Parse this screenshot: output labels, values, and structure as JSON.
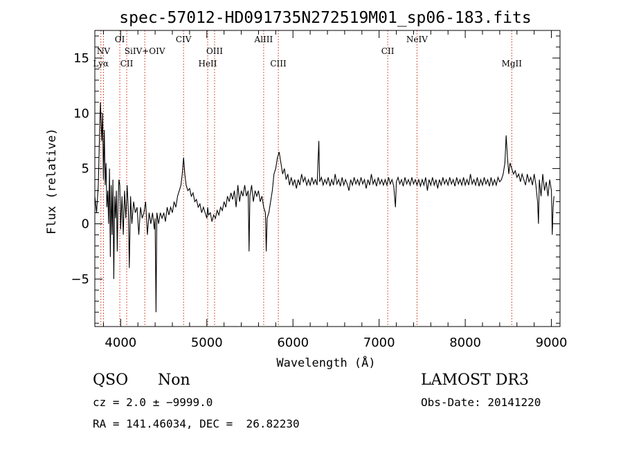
{
  "chart_data": {
    "type": "line",
    "title": "spec-57012-HD091735N272519M01_sp06-183.fits",
    "xlabel": "Wavelength (Å)",
    "ylabel": "Flux (relative)",
    "xlim": [
      3700,
      9100
    ],
    "ylim": [
      -9.3,
      17.5
    ],
    "xticks": [
      4000,
      5000,
      6000,
      7000,
      8000,
      9000
    ],
    "yticks": [
      -5,
      0,
      5,
      10,
      15
    ],
    "xtick_labels": [
      "4000",
      "5000",
      "6000",
      "7000",
      "8000",
      "9000"
    ],
    "ytick_labels": [
      "−5",
      "0",
      "5",
      "10",
      "15"
    ],
    "lines": [
      {
        "label": "Lyα",
        "x": 3770,
        "row": 2
      },
      {
        "label": "NV",
        "x": 3800,
        "row": 1
      },
      {
        "label": "OI",
        "x": 3990,
        "row": 0
      },
      {
        "label": "CII",
        "x": 4070,
        "row": 2
      },
      {
        "label": "SiIV+OIV",
        "x": 4280,
        "row": 1
      },
      {
        "label": "CIV",
        "x": 4730,
        "row": 0
      },
      {
        "label": "HeII",
        "x": 5010,
        "row": 2
      },
      {
        "label": "OIII",
        "x": 5090,
        "row": 1
      },
      {
        "label": "AlIII",
        "x": 5660,
        "row": 0
      },
      {
        "label": "CIII",
        "x": 5830,
        "row": 2
      },
      {
        "label": "CII",
        "x": 7100,
        "row": 1
      },
      {
        "label": "NeIV",
        "x": 7440,
        "row": 0
      },
      {
        "label": "MgII",
        "x": 8540,
        "row": 2
      }
    ],
    "series": [
      {
        "points": [
          [
            3700,
            2.5
          ],
          [
            3720,
            1.0
          ],
          [
            3740,
            3.5
          ],
          [
            3755,
            8.0
          ],
          [
            3765,
            11.0
          ],
          [
            3780,
            7.5
          ],
          [
            3790,
            10.0
          ],
          [
            3800,
            4.0
          ],
          [
            3810,
            8.5
          ],
          [
            3820,
            3.5
          ],
          [
            3830,
            5.5
          ],
          [
            3840,
            1.5
          ],
          [
            3850,
            3.0
          ],
          [
            3860,
            0.0
          ],
          [
            3870,
            5.0
          ],
          [
            3880,
            -3.0
          ],
          [
            3890,
            3.5
          ],
          [
            3900,
            -1.0
          ],
          [
            3910,
            4.0
          ],
          [
            3920,
            -5.0
          ],
          [
            3930,
            2.5
          ],
          [
            3940,
            0.5
          ],
          [
            3950,
            3.0
          ],
          [
            3960,
            -2.5
          ],
          [
            3970,
            2.0
          ],
          [
            3980,
            4.0
          ],
          [
            3990,
            3.5
          ],
          [
            4000,
            -0.5
          ],
          [
            4015,
            2.5
          ],
          [
            4030,
            -1.0
          ],
          [
            4045,
            3.0
          ],
          [
            4060,
            0.5
          ],
          [
            4075,
            3.5
          ],
          [
            4090,
            1.0
          ],
          [
            4100,
            -4.0
          ],
          [
            4115,
            2.5
          ],
          [
            4130,
            0.0
          ],
          [
            4150,
            2.0
          ],
          [
            4170,
            1.0
          ],
          [
            4190,
            1.5
          ],
          [
            4210,
            -1.0
          ],
          [
            4230,
            1.5
          ],
          [
            4250,
            0.5
          ],
          [
            4270,
            1.0
          ],
          [
            4290,
            2.0
          ],
          [
            4310,
            -1.0
          ],
          [
            4330,
            1.0
          ],
          [
            4350,
            0.0
          ],
          [
            4370,
            1.0
          ],
          [
            4390,
            -0.5
          ],
          [
            4400,
            0.5
          ],
          [
            4410,
            -8.0
          ],
          [
            4420,
            1.0
          ],
          [
            4440,
            0.0
          ],
          [
            4460,
            1.0
          ],
          [
            4480,
            0.5
          ],
          [
            4500,
            1.0
          ],
          [
            4520,
            0.2
          ],
          [
            4540,
            1.5
          ],
          [
            4560,
            0.8
          ],
          [
            4580,
            1.5
          ],
          [
            4600,
            1.0
          ],
          [
            4620,
            2.0
          ],
          [
            4640,
            1.5
          ],
          [
            4660,
            2.5
          ],
          [
            4680,
            3.0
          ],
          [
            4700,
            3.5
          ],
          [
            4715,
            4.5
          ],
          [
            4730,
            6.0
          ],
          [
            4745,
            4.5
          ],
          [
            4760,
            3.5
          ],
          [
            4780,
            3.0
          ],
          [
            4800,
            3.2
          ],
          [
            4820,
            2.5
          ],
          [
            4840,
            2.8
          ],
          [
            4860,
            2.0
          ],
          [
            4880,
            2.2
          ],
          [
            4900,
            1.5
          ],
          [
            4920,
            1.8
          ],
          [
            4940,
            1.0
          ],
          [
            4960,
            1.5
          ],
          [
            4980,
            1.0
          ],
          [
            5000,
            0.5
          ],
          [
            5010,
            1.5
          ],
          [
            5020,
            0.8
          ],
          [
            5040,
            1.0
          ],
          [
            5060,
            0.2
          ],
          [
            5080,
            0.8
          ],
          [
            5100,
            0.5
          ],
          [
            5120,
            1.2
          ],
          [
            5140,
            0.8
          ],
          [
            5160,
            1.5
          ],
          [
            5180,
            1.2
          ],
          [
            5200,
            2.0
          ],
          [
            5220,
            1.5
          ],
          [
            5240,
            2.5
          ],
          [
            5260,
            2.0
          ],
          [
            5280,
            2.8
          ],
          [
            5300,
            2.2
          ],
          [
            5320,
            3.0
          ],
          [
            5340,
            1.5
          ],
          [
            5360,
            3.5
          ],
          [
            5380,
            2.0
          ],
          [
            5400,
            3.0
          ],
          [
            5420,
            2.5
          ],
          [
            5440,
            3.5
          ],
          [
            5460,
            2.5
          ],
          [
            5480,
            3.0
          ],
          [
            5490,
            -2.5
          ],
          [
            5500,
            2.5
          ],
          [
            5520,
            3.5
          ],
          [
            5540,
            2.0
          ],
          [
            5560,
            3.0
          ],
          [
            5580,
            2.5
          ],
          [
            5600,
            3.0
          ],
          [
            5620,
            2.0
          ],
          [
            5640,
            2.5
          ],
          [
            5660,
            1.5
          ],
          [
            5680,
            1.0
          ],
          [
            5690,
            -2.5
          ],
          [
            5700,
            0.5
          ],
          [
            5720,
            1.0
          ],
          [
            5740,
            2.0
          ],
          [
            5760,
            3.0
          ],
          [
            5780,
            4.5
          ],
          [
            5800,
            5.0
          ],
          [
            5820,
            6.0
          ],
          [
            5840,
            6.5
          ],
          [
            5860,
            5.5
          ],
          [
            5880,
            4.5
          ],
          [
            5900,
            5.0
          ],
          [
            5920,
            4.0
          ],
          [
            5940,
            4.5
          ],
          [
            5960,
            3.5
          ],
          [
            5980,
            4.2
          ],
          [
            6000,
            3.5
          ],
          [
            6020,
            4.0
          ],
          [
            6040,
            3.2
          ],
          [
            6060,
            4.0
          ],
          [
            6080,
            3.5
          ],
          [
            6100,
            4.5
          ],
          [
            6120,
            3.8
          ],
          [
            6140,
            4.2
          ],
          [
            6160,
            3.5
          ],
          [
            6180,
            4.0
          ],
          [
            6200,
            3.5
          ],
          [
            6220,
            4.2
          ],
          [
            6240,
            3.6
          ],
          [
            6260,
            4.0
          ],
          [
            6280,
            3.5
          ],
          [
            6300,
            7.5
          ],
          [
            6310,
            3.8
          ],
          [
            6330,
            4.2
          ],
          [
            6350,
            3.5
          ],
          [
            6370,
            4.0
          ],
          [
            6390,
            3.6
          ],
          [
            6410,
            4.2
          ],
          [
            6430,
            3.4
          ],
          [
            6450,
            4.0
          ],
          [
            6470,
            3.5
          ],
          [
            6490,
            4.5
          ],
          [
            6510,
            3.6
          ],
          [
            6530,
            4.0
          ],
          [
            6550,
            3.4
          ],
          [
            6570,
            4.2
          ],
          [
            6590,
            3.5
          ],
          [
            6610,
            4.0
          ],
          [
            6630,
            3.6
          ],
          [
            6650,
            3.0
          ],
          [
            6670,
            4.0
          ],
          [
            6690,
            3.5
          ],
          [
            6710,
            4.2
          ],
          [
            6730,
            3.6
          ],
          [
            6750,
            4.0
          ],
          [
            6770,
            3.5
          ],
          [
            6790,
            4.2
          ],
          [
            6810,
            3.6
          ],
          [
            6830,
            4.0
          ],
          [
            6850,
            3.2
          ],
          [
            6870,
            4.0
          ],
          [
            6890,
            3.5
          ],
          [
            6910,
            4.5
          ],
          [
            6930,
            3.6
          ],
          [
            6950,
            4.0
          ],
          [
            6970,
            3.4
          ],
          [
            6990,
            4.2
          ],
          [
            7010,
            3.6
          ],
          [
            7030,
            4.0
          ],
          [
            7050,
            3.5
          ],
          [
            7070,
            4.0
          ],
          [
            7090,
            3.5
          ],
          [
            7110,
            4.2
          ],
          [
            7130,
            3.6
          ],
          [
            7150,
            4.0
          ],
          [
            7170,
            3.4
          ],
          [
            7190,
            1.5
          ],
          [
            7200,
            3.8
          ],
          [
            7220,
            4.2
          ],
          [
            7240,
            3.6
          ],
          [
            7260,
            4.0
          ],
          [
            7280,
            3.4
          ],
          [
            7300,
            4.2
          ],
          [
            7320,
            3.6
          ],
          [
            7340,
            4.0
          ],
          [
            7360,
            3.5
          ],
          [
            7380,
            4.2
          ],
          [
            7400,
            3.6
          ],
          [
            7420,
            4.0
          ],
          [
            7440,
            3.5
          ],
          [
            7460,
            4.0
          ],
          [
            7480,
            3.4
          ],
          [
            7500,
            4.0
          ],
          [
            7520,
            3.5
          ],
          [
            7540,
            4.2
          ],
          [
            7560,
            3.0
          ],
          [
            7580,
            4.0
          ],
          [
            7600,
            3.5
          ],
          [
            7620,
            4.2
          ],
          [
            7640,
            3.5
          ],
          [
            7660,
            4.0
          ],
          [
            7680,
            3.2
          ],
          [
            7700,
            4.0
          ],
          [
            7720,
            3.5
          ],
          [
            7740,
            4.2
          ],
          [
            7760,
            3.6
          ],
          [
            7780,
            4.0
          ],
          [
            7800,
            3.5
          ],
          [
            7820,
            4.2
          ],
          [
            7840,
            3.6
          ],
          [
            7860,
            4.0
          ],
          [
            7880,
            3.4
          ],
          [
            7900,
            4.2
          ],
          [
            7920,
            3.6
          ],
          [
            7940,
            4.0
          ],
          [
            7960,
            3.5
          ],
          [
            7980,
            4.2
          ],
          [
            8000,
            3.5
          ],
          [
            8020,
            4.0
          ],
          [
            8040,
            3.5
          ],
          [
            8060,
            4.5
          ],
          [
            8080,
            3.6
          ],
          [
            8100,
            4.0
          ],
          [
            8120,
            3.5
          ],
          [
            8140,
            4.2
          ],
          [
            8160,
            3.4
          ],
          [
            8180,
            4.0
          ],
          [
            8200,
            3.5
          ],
          [
            8220,
            4.2
          ],
          [
            8240,
            3.6
          ],
          [
            8260,
            4.0
          ],
          [
            8280,
            3.4
          ],
          [
            8300,
            4.2
          ],
          [
            8320,
            3.5
          ],
          [
            8340,
            4.0
          ],
          [
            8360,
            3.5
          ],
          [
            8380,
            4.2
          ],
          [
            8400,
            3.8
          ],
          [
            8420,
            4.0
          ],
          [
            8440,
            4.5
          ],
          [
            8460,
            5.5
          ],
          [
            8475,
            8.0
          ],
          [
            8490,
            6.0
          ],
          [
            8505,
            4.5
          ],
          [
            8520,
            5.5
          ],
          [
            8540,
            5.0
          ],
          [
            8560,
            4.5
          ],
          [
            8580,
            4.8
          ],
          [
            8600,
            4.2
          ],
          [
            8620,
            4.5
          ],
          [
            8640,
            3.8
          ],
          [
            8660,
            4.5
          ],
          [
            8680,
            4.0
          ],
          [
            8700,
            3.5
          ],
          [
            8720,
            4.5
          ],
          [
            8740,
            3.8
          ],
          [
            8760,
            4.2
          ],
          [
            8780,
            3.5
          ],
          [
            8800,
            4.5
          ],
          [
            8820,
            3.5
          ],
          [
            8840,
            2.0
          ],
          [
            8850,
            0.0
          ],
          [
            8860,
            4.0
          ],
          [
            8880,
            2.5
          ],
          [
            8900,
            4.5
          ],
          [
            8920,
            3.0
          ],
          [
            8940,
            3.8
          ],
          [
            8960,
            2.5
          ],
          [
            8980,
            4.0
          ],
          [
            9000,
            3.0
          ],
          [
            9010,
            -1.0
          ],
          [
            9020,
            1.5
          ],
          [
            9030,
            2.5
          ]
        ]
      }
    ]
  },
  "info": {
    "class": "QSO",
    "subclass": "Non",
    "cz_line": "cz = 2.0 ± −9999.0",
    "radec_line": "RA = 141.46034, DEC =  26.82230",
    "survey": "LAMOST DR3",
    "obs_date": "Obs-Date: 20141220"
  }
}
